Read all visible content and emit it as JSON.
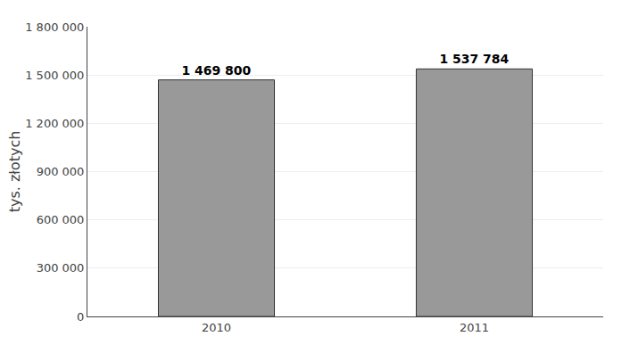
{
  "chart_data": {
    "type": "bar",
    "categories": [
      "2010",
      "2011"
    ],
    "values": [
      1469800,
      1537784
    ],
    "value_labels": [
      "1 469 800",
      "1 537 784"
    ],
    "data_labels": true,
    "color": "#999999",
    "ylabel": "tys. złotych",
    "ylim": [
      0,
      1800000
    ],
    "yticks": [
      0,
      {
        "value": 300000,
        "label": "300 000"
      },
      {
        "value": 600000,
        "label": "600 000"
      },
      {
        "value": 900000,
        "label": "900 000"
      },
      {
        "value": 1200000,
        "label": "1 200 000"
      },
      {
        "value": 1500000,
        "label": "1 500 000"
      },
      {
        "value": 1800000,
        "label": "1 800 000"
      }
    ],
    "grid": true
  }
}
